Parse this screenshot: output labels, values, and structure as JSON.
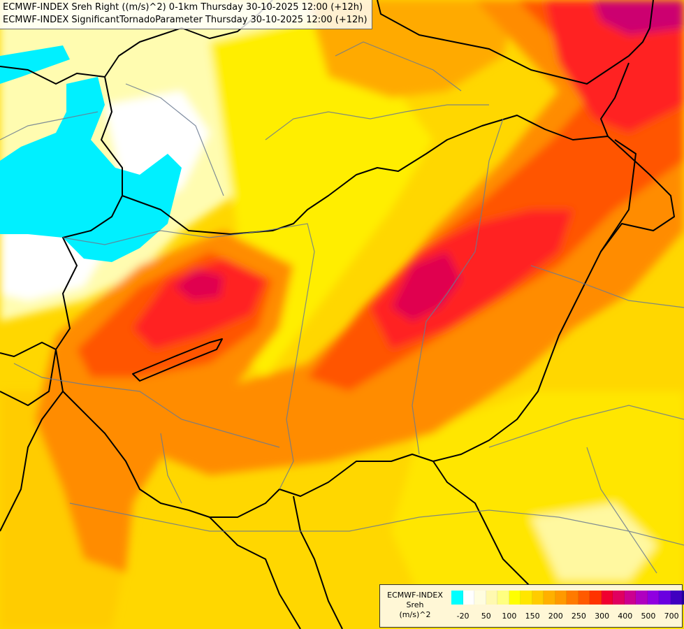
{
  "title": {
    "line1": "ECMWF-INDEX Sreh Right ((m/s)^2) 0-1km Thursday 30-10-2025 12:00 (+12h)",
    "line2": "ECMWF-INDEX SignificantTornadoParameter Thursday 30-10-2025 12:00 (+12h)"
  },
  "legend": {
    "label1": "ECMWF-INDEX",
    "label2": "Sreh",
    "label3": "(m/s)^2",
    "colors": [
      "#00ffff",
      "#ffffff",
      "#fffde0",
      "#fff9b0",
      "#ffff80",
      "#ffff00",
      "#ffe600",
      "#ffcc00",
      "#ffb000",
      "#ff9900",
      "#ff7a00",
      "#ff5a00",
      "#ff3300",
      "#f00030",
      "#e00060",
      "#cc0090",
      "#b000c0",
      "#9000e0",
      "#6a00e0",
      "#4000c0",
      "#20009a",
      "#000080"
    ],
    "ticks": [
      {
        "label": "-20",
        "index": 1
      },
      {
        "label": "50",
        "index": 3
      },
      {
        "label": "100",
        "index": 5
      },
      {
        "label": "150",
        "index": 7
      },
      {
        "label": "200",
        "index": 9
      },
      {
        "label": "250",
        "index": 11
      },
      {
        "label": "300",
        "index": 13
      },
      {
        "label": "400",
        "index": 15
      },
      {
        "label": "500",
        "index": 17
      },
      {
        "label": "700",
        "index": 19
      }
    ]
  }
}
